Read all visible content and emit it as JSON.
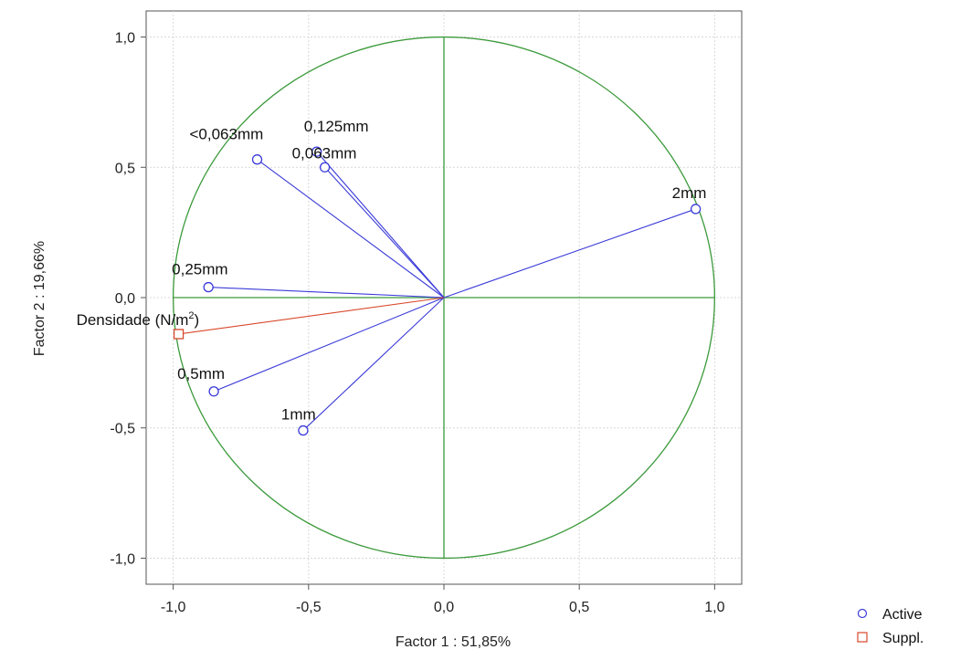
{
  "chart_data": {
    "type": "scatter",
    "subtype": "pca-correlation-circle",
    "title": "",
    "xlabel": "Factor 1 : 51,85%",
    "ylabel": "Factor 2 : 19,66%",
    "xlim": [
      -1.1,
      1.1
    ],
    "ylim": [
      -1.1,
      1.1
    ],
    "x_ticks": [
      -1.0,
      -0.5,
      0.0,
      0.5,
      1.0
    ],
    "x_tick_labels": [
      "-1,0",
      "-0,5",
      "0,0",
      "0,5",
      "1,0"
    ],
    "y_ticks": [
      1.0,
      0.5,
      0.0,
      -0.5,
      -1.0
    ],
    "y_tick_labels": [
      "1,0",
      "0,5",
      "0,0",
      "-0,5",
      "-1,0"
    ],
    "grid": true,
    "unit_circle": true,
    "legend_position": "bottom-right outside",
    "colors": {
      "active": "#3b3bd9",
      "supplementary": "#d9482b",
      "circle": "#3c9a3c",
      "axes": "#3c9a3c",
      "grid": "#d8d8d8"
    },
    "series": [
      {
        "name": "Active",
        "marker": "circle",
        "points": [
          {
            "label": "<0,063mm",
            "x": -0.69,
            "y": 0.53
          },
          {
            "label": "0,125mm",
            "x": -0.47,
            "y": 0.56
          },
          {
            "label": "0,063mm",
            "x": -0.44,
            "y": 0.5
          },
          {
            "label": "2mm",
            "x": 0.93,
            "y": 0.34
          },
          {
            "label": "0,25mm",
            "x": -0.87,
            "y": 0.04
          },
          {
            "label": "0,5mm",
            "x": -0.85,
            "y": -0.36
          },
          {
            "label": "1mm",
            "x": -0.52,
            "y": -0.51
          }
        ]
      },
      {
        "name": "Suppl.",
        "marker": "square",
        "points": [
          {
            "label_text": "Densidade (N/m",
            "label_sup": "2",
            "label_close": ")",
            "x": -0.98,
            "y": -0.14
          }
        ]
      }
    ]
  }
}
